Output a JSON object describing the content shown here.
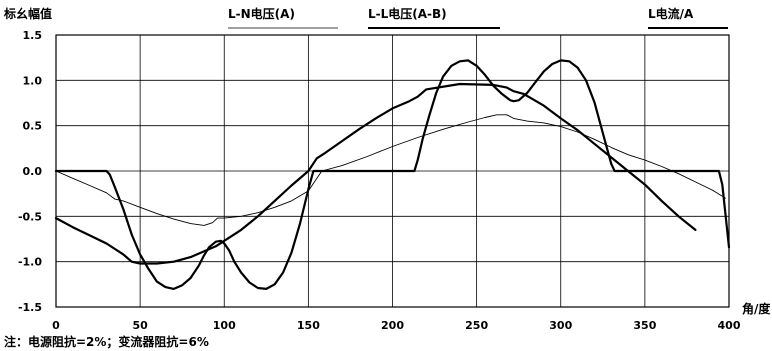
{
  "chart_data": {
    "type": "line",
    "title": "标幺幅值",
    "xlabel": "角/度",
    "ylabel": "",
    "xlim": [
      0,
      400
    ],
    "ylim": [
      -1.5,
      1.5
    ],
    "grid": true,
    "legend": "top",
    "x_ticks": [
      0,
      50,
      100,
      150,
      200,
      250,
      300,
      350,
      400
    ],
    "y_ticks": [
      -1.5,
      -1.0,
      -0.5,
      0.0,
      0.5,
      1.0,
      1.5
    ],
    "x_tick_labels": [
      "0",
      "50",
      "100",
      "150",
      "200",
      "250",
      "300",
      "350",
      "400"
    ],
    "y_tick_labels": [
      "-1.5",
      "-1.0",
      "-0.5",
      "0.0",
      "0.5",
      "1.0",
      "1.5"
    ],
    "series": [
      {
        "name": "L-N电压(A)",
        "style": "thin",
        "color": "#000000",
        "x": [
          0,
          10,
          20,
          30,
          35,
          40,
          50,
          60,
          70,
          80,
          88,
          93,
          96,
          100,
          110,
          120,
          130,
          140,
          150,
          158,
          170,
          185,
          200,
          215,
          230,
          245,
          255,
          262,
          268,
          272,
          280,
          290,
          300,
          310,
          320,
          330,
          340,
          350,
          360,
          370,
          380,
          390,
          398
        ],
        "y": [
          0.0,
          -0.08,
          -0.16,
          -0.24,
          -0.31,
          -0.33,
          -0.4,
          -0.47,
          -0.53,
          -0.58,
          -0.6,
          -0.57,
          -0.52,
          -0.52,
          -0.5,
          -0.46,
          -0.4,
          -0.33,
          -0.22,
          0.0,
          0.06,
          0.16,
          0.27,
          0.37,
          0.46,
          0.54,
          0.59,
          0.62,
          0.62,
          0.58,
          0.55,
          0.53,
          0.49,
          0.43,
          0.35,
          0.26,
          0.18,
          0.12,
          0.05,
          -0.03,
          -0.12,
          -0.21,
          -0.3
        ]
      },
      {
        "name": "L-L电压(A-B)",
        "style": "thick",
        "color": "#000000",
        "x": [
          0,
          10,
          20,
          30,
          40,
          45,
          50,
          60,
          70,
          80,
          90,
          95,
          100,
          110,
          120,
          130,
          140,
          150,
          155,
          160,
          170,
          180,
          190,
          200,
          210,
          215,
          220,
          240,
          260,
          268,
          272,
          278,
          290,
          300,
          310,
          320,
          330,
          340,
          350,
          360,
          370,
          380
        ],
        "y": [
          -0.52,
          -0.62,
          -0.71,
          -0.8,
          -0.92,
          -1.0,
          -1.02,
          -1.02,
          -1.0,
          -0.95,
          -0.87,
          -0.83,
          -0.77,
          -0.65,
          -0.5,
          -0.33,
          -0.16,
          0.0,
          0.14,
          0.2,
          0.33,
          0.46,
          0.58,
          0.69,
          0.77,
          0.82,
          0.9,
          0.96,
          0.95,
          0.92,
          0.88,
          0.85,
          0.72,
          0.58,
          0.45,
          0.3,
          0.15,
          0.0,
          -0.15,
          -0.33,
          -0.5,
          -0.65
        ]
      },
      {
        "name": "L电流/A",
        "style": "thick",
        "color": "#000000",
        "x": [
          0,
          15,
          30,
          32,
          35,
          40,
          45,
          50,
          55,
          60,
          65,
          70,
          75,
          80,
          85,
          88,
          91,
          95,
          98,
          100,
          103,
          106,
          110,
          115,
          120,
          125,
          130,
          135,
          140,
          145,
          150,
          153,
          213,
          215,
          218,
          222,
          226,
          230,
          235,
          240,
          245,
          250,
          255,
          260,
          265,
          270,
          272,
          275,
          280,
          285,
          290,
          295,
          300,
          305,
          310,
          315,
          320,
          325,
          330,
          332,
          394,
          396,
          400
        ],
        "y": [
          0,
          0,
          0,
          -0.04,
          -0.18,
          -0.42,
          -0.7,
          -0.92,
          -1.08,
          -1.22,
          -1.28,
          -1.3,
          -1.26,
          -1.18,
          -1.04,
          -0.93,
          -0.84,
          -0.78,
          -0.77,
          -0.8,
          -0.88,
          -1.0,
          -1.12,
          -1.23,
          -1.29,
          -1.3,
          -1.25,
          -1.12,
          -0.9,
          -0.58,
          -0.2,
          0.0,
          0.0,
          0.12,
          0.36,
          0.62,
          0.86,
          1.04,
          1.16,
          1.21,
          1.22,
          1.16,
          1.06,
          0.94,
          0.85,
          0.78,
          0.77,
          0.78,
          0.86,
          0.98,
          1.1,
          1.18,
          1.22,
          1.21,
          1.14,
          1.0,
          0.76,
          0.42,
          0.08,
          0.0,
          0.0,
          -0.15,
          -0.84
        ]
      }
    ]
  },
  "note": "注：电源阻抗=2%；变流器阻抗=6%"
}
